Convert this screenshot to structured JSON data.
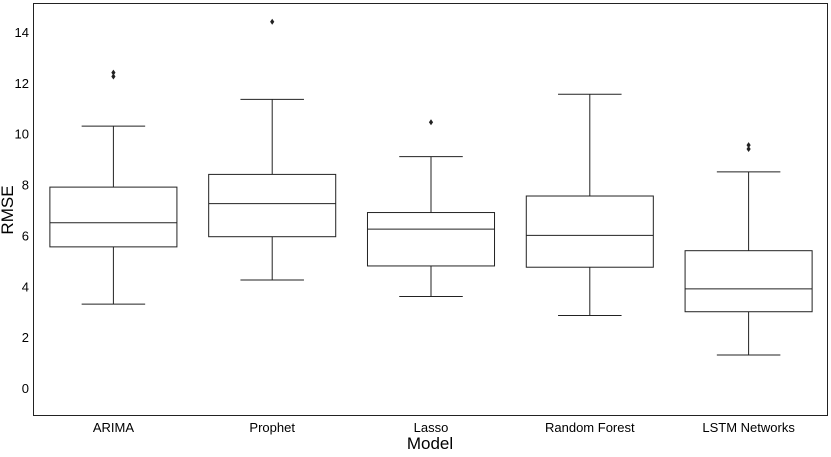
{
  "chart_data": {
    "type": "box",
    "xlabel": "Model",
    "ylabel": "RMSE",
    "ylim": [
      -1.1,
      15.1
    ],
    "yticks": [
      0,
      2,
      4,
      6,
      8,
      10,
      12,
      14
    ],
    "grid": false,
    "categories": [
      "ARIMA",
      "Prophet",
      "Lasso",
      "Random Forest",
      "LSTM Networks"
    ],
    "boxes": [
      {
        "whisker_low": 3.3,
        "q1": 5.55,
        "median": 6.5,
        "q3": 7.9,
        "whisker_high": 10.3,
        "outliers": [
          12.25,
          12.4
        ]
      },
      {
        "whisker_low": 4.25,
        "q1": 5.95,
        "median": 7.25,
        "q3": 8.4,
        "whisker_high": 11.35,
        "outliers": [
          14.4
        ]
      },
      {
        "whisker_low": 3.6,
        "q1": 4.8,
        "median": 6.25,
        "q3": 6.9,
        "whisker_high": 9.1,
        "outliers": [
          10.45
        ]
      },
      {
        "whisker_low": 2.85,
        "q1": 4.75,
        "median": 6.0,
        "q3": 7.55,
        "whisker_high": 11.55,
        "outliers": []
      },
      {
        "whisker_low": 1.3,
        "q1": 3.0,
        "median": 3.9,
        "q3": 5.4,
        "whisker_high": 8.5,
        "outliers": [
          9.4,
          9.55
        ]
      }
    ]
  }
}
